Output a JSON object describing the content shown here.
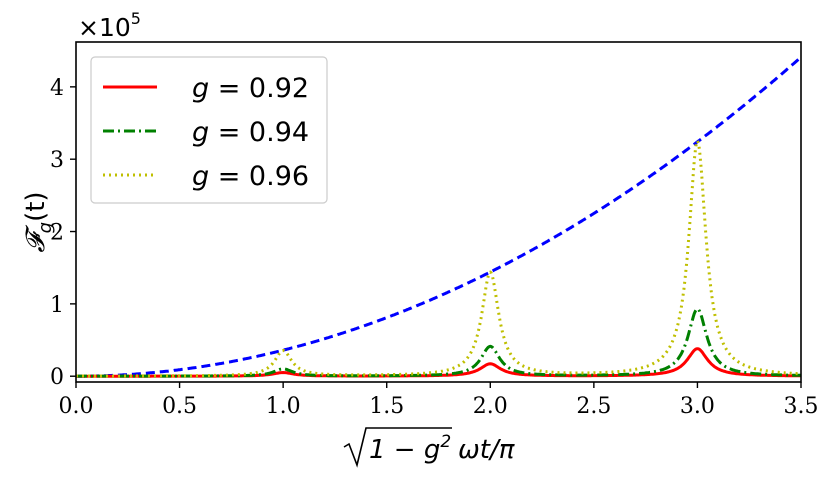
{
  "chart_data": {
    "type": "line",
    "xlabel": "√(1 − g²) ωt/π",
    "xlabel_parts": {
      "radicand": "1 − g",
      "exponent": "2",
      "suffix": "ωt/π"
    },
    "ylabel": "𝓕g(t)",
    "ylabel_parts": {
      "main": "𝓕",
      "sub": "g",
      "arg": "(t)"
    },
    "y_multiplier": {
      "base": "×10",
      "exponent": "5"
    },
    "xlim": [
      0.0,
      3.5
    ],
    "ylim": [
      -0.08,
      4.62
    ],
    "x_ticks": [
      "0.0",
      "0.5",
      "1.0",
      "1.5",
      "2.0",
      "2.5",
      "3.0",
      "3.5"
    ],
    "x_tick_values": [
      0.0,
      0.5,
      1.0,
      1.5,
      2.0,
      2.5,
      3.0,
      3.5
    ],
    "y_ticks": [
      "0",
      "1",
      "2",
      "3",
      "4"
    ],
    "y_tick_values": [
      0,
      1,
      2,
      3,
      4
    ],
    "grid": false,
    "legend_position": "top-left",
    "series": [
      {
        "name": "g = 0.92",
        "label_var": "g",
        "label_value": "0.92",
        "color": "#ff0000",
        "style": "solid",
        "x": [
          0.0,
          0.5,
          0.8,
          1.0,
          1.2,
          1.5,
          1.8,
          2.0,
          2.2,
          2.5,
          2.8,
          3.0,
          3.2,
          3.5
        ],
        "y": [
          0.0,
          0.002,
          0.012,
          0.05,
          0.012,
          0.005,
          0.05,
          0.17,
          0.05,
          0.01,
          0.1,
          0.38,
          0.1,
          0.01
        ]
      },
      {
        "name": "g = 0.94",
        "label_var": "g",
        "label_value": "0.94",
        "color": "#008000",
        "style": "dashdot",
        "x": [
          0.0,
          0.5,
          0.8,
          1.0,
          1.2,
          1.5,
          1.8,
          2.0,
          2.2,
          2.5,
          2.8,
          3.0,
          3.2,
          3.5
        ],
        "y": [
          0.0,
          0.002,
          0.02,
          0.1,
          0.02,
          0.005,
          0.1,
          0.41,
          0.1,
          0.01,
          0.22,
          0.93,
          0.22,
          0.01
        ]
      },
      {
        "name": "g = 0.96",
        "label_var": "g",
        "label_value": "0.96",
        "color": "#bfbf00",
        "style": "dotted",
        "x": [
          0.0,
          0.5,
          0.8,
          1.0,
          1.2,
          1.5,
          1.8,
          2.0,
          2.2,
          2.5,
          2.8,
          3.0,
          3.2,
          3.5
        ],
        "y": [
          0.0,
          0.005,
          0.05,
          0.35,
          0.05,
          0.01,
          0.3,
          1.43,
          0.3,
          0.02,
          0.65,
          3.25,
          0.65,
          0.02
        ]
      },
      {
        "name": "",
        "color": "#0000ff",
        "style": "dashed",
        "x": [
          0.0,
          0.5,
          1.0,
          1.5,
          2.0,
          2.5,
          3.0,
          3.5
        ],
        "y": [
          0.0,
          0.09,
          0.36,
          0.81,
          1.44,
          2.25,
          3.24,
          4.41
        ]
      }
    ]
  }
}
